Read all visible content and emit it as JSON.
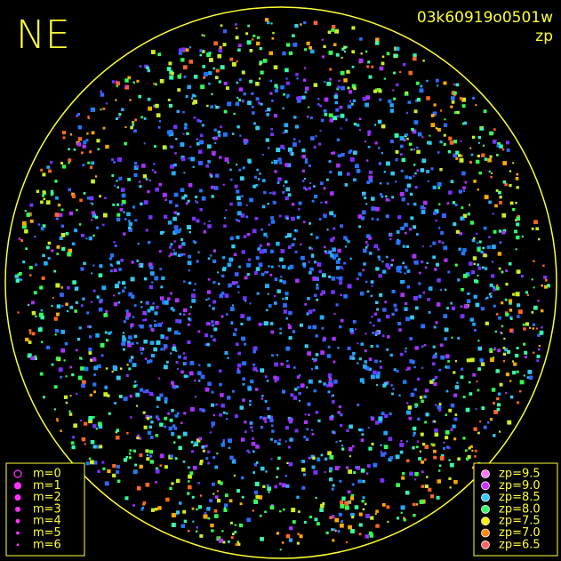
{
  "header": {
    "label": "NE",
    "frame_id": "03k60919o0501w",
    "mode": "zp"
  },
  "magnitude_legend": {
    "color": "#ff33ff",
    "items": [
      "m=0",
      "m=1",
      "m=2",
      "m=3",
      "m=4",
      "m=5",
      "m=6"
    ]
  },
  "zp_legend": {
    "items": [
      {
        "label": "zp=9.5",
        "color": "#ff77ff"
      },
      {
        "label": "zp=9.0",
        "color": "#cc33ff"
      },
      {
        "label": "zp=8.5",
        "color": "#33ccff"
      },
      {
        "label": "zp=8.0",
        "color": "#33ff66"
      },
      {
        "label": "zp=7.5",
        "color": "#ffee00"
      },
      {
        "label": "zp=7.0",
        "color": "#ff8800"
      },
      {
        "label": "zp=6.5",
        "color": "#ff6666"
      }
    ]
  }
}
